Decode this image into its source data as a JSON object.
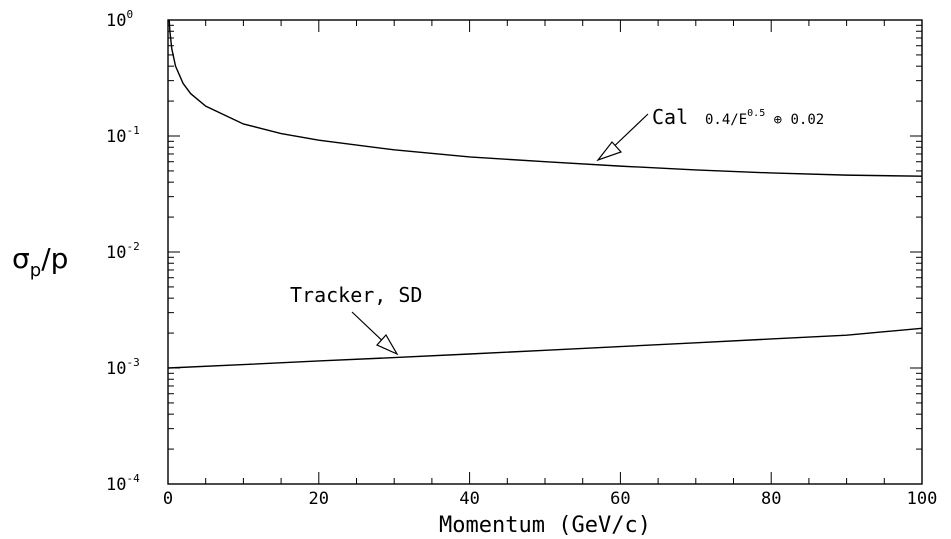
{
  "chart_data": {
    "type": "line",
    "xlabel": "Momentum (GeV/c)",
    "ylabel": {
      "main": "σ",
      "sub": "p",
      "tail": "/p"
    },
    "xlim": [
      0,
      100
    ],
    "ylim": [
      0.0001,
      1
    ],
    "yscale": "log",
    "grid": false,
    "x_ticks": [
      "0",
      "20",
      "40",
      "60",
      "80",
      "100"
    ],
    "y_ticks": [
      {
        "base": "10",
        "exp": "0",
        "value": 1
      },
      {
        "base": "10",
        "exp": "-1",
        "value": 0.1
      },
      {
        "base": "10",
        "exp": "-2",
        "value": 0.01
      },
      {
        "base": "10",
        "exp": "-3",
        "value": 0.001
      },
      {
        "base": "10",
        "exp": "-4",
        "value": 0.0001
      }
    ],
    "series": [
      {
        "name": "Cal",
        "formula_parts": [
          "0.4/E",
          "0.5",
          " ⊕ 0.02"
        ],
        "x": [
          0.16,
          0.25,
          0.5,
          1,
          2,
          3,
          5,
          10,
          15,
          20,
          30,
          40,
          50,
          60,
          70,
          80,
          90,
          100
        ],
        "y": [
          1.0,
          0.8,
          0.566,
          0.4,
          0.284,
          0.232,
          0.181,
          0.127,
          0.105,
          0.092,
          0.076,
          0.066,
          0.06,
          0.055,
          0.051,
          0.048,
          0.046,
          0.045
        ]
      },
      {
        "name": "Tracker, SD",
        "x": [
          0,
          10,
          20,
          30,
          40,
          50,
          60,
          70,
          80,
          90,
          100
        ],
        "y": [
          0.001,
          0.00107,
          0.00115,
          0.00123,
          0.00132,
          0.00142,
          0.00153,
          0.00165,
          0.00178,
          0.00192,
          0.0022
        ]
      }
    ],
    "annotations": [
      {
        "text": "Cal",
        "target_series": "Cal",
        "target_x": 57
      },
      {
        "text": "Tracker, SD",
        "target_series": "Tracker, SD",
        "target_x": 30
      }
    ]
  }
}
